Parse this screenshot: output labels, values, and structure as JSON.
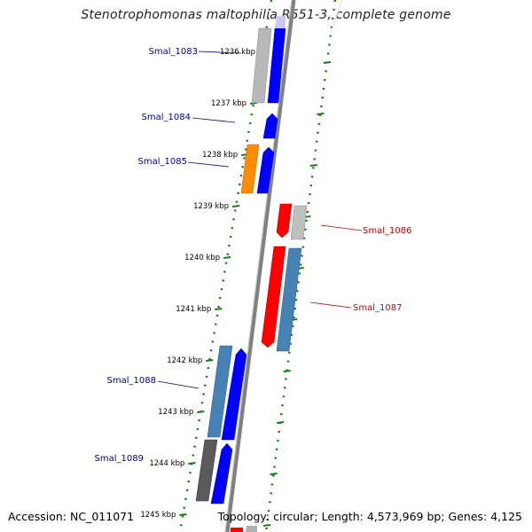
{
  "title": "Stenotrophomonas maltophilia R551-3, complete genome",
  "footer": {
    "accession": "Accession: NC_011071",
    "summary": "Topology: circular; Length: 4,573,969 bp; Genes: 4,125"
  },
  "ticks": [
    "1236 kbp",
    "1237 kbp",
    "1238 kbp",
    "1239 kbp",
    "1240 kbp",
    "1241 kbp",
    "1242 kbp",
    "1243 kbp",
    "1244 kbp",
    "1245 kbp"
  ],
  "labels": [
    {
      "text": "Smal_1083",
      "color": "#00008b"
    },
    {
      "text": "Smal_1084",
      "color": "#00008b"
    },
    {
      "text": "Smal_1085",
      "color": "#00008b"
    },
    {
      "text": "Smal_1086",
      "color": "#cc0000"
    },
    {
      "text": "Smal_1087",
      "color": "#cc0000"
    },
    {
      "text": "Smal_1088",
      "color": "#00008b"
    },
    {
      "text": "Smal_1089",
      "color": "#00008b"
    }
  ],
  "colors": {
    "cds_forward": "#0000ff",
    "cds_reverse": "#ff0000",
    "gene_gray": "#b0b0b0",
    "gene_steel": "#4682b4",
    "gene_orange": "#ff8c00",
    "gene_dark": "#555555",
    "tick": "#1a7a1a",
    "backbone": "#808080"
  }
}
